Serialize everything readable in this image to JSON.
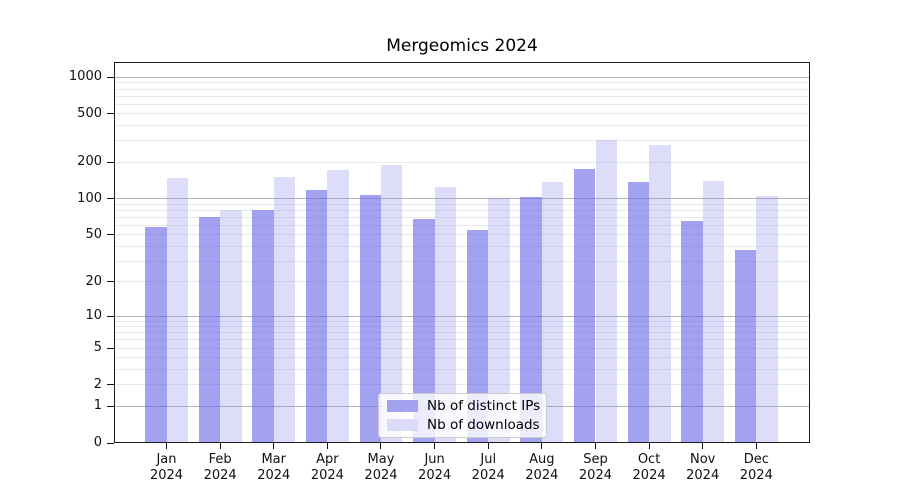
{
  "title": "Mergeomics 2024",
  "chart_data": {
    "type": "bar",
    "title": "Mergeomics 2024",
    "categories": [
      "Jan",
      "Feb",
      "Mar",
      "Apr",
      "May",
      "Jun",
      "Jul",
      "Aug",
      "Sep",
      "Oct",
      "Nov",
      "Dec"
    ],
    "year": "2024",
    "series": [
      {
        "name": "Nb of distinct IPs",
        "key": "distinct-ips",
        "color": "rgba(100,100,232,0.60)",
        "legend_color": "#a2a2f1",
        "values": [
          58,
          70,
          80,
          119,
          107,
          68,
          55,
          104,
          176,
          137,
          65,
          37
        ]
      },
      {
        "name": "Nb of downloads",
        "key": "downloads",
        "color": "rgba(130,130,235,0.27)",
        "legend_color": "#dcdcfa",
        "values": [
          148,
          81,
          150,
          174,
          191,
          125,
          102,
          137,
          305,
          280,
          141,
          106
        ]
      }
    ],
    "yscale": "log1p",
    "ylim": [
      0,
      1335
    ],
    "yticks": [
      0,
      1,
      2,
      5,
      10,
      20,
      50,
      100,
      200,
      500,
      1000
    ],
    "major_grid_values": [
      1,
      10,
      100,
      1000
    ],
    "grid": "horizontal",
    "legend_position": "lower center",
    "colors": {
      "major_grid": "#b4b4b8",
      "minor_grid": "#e9e9ee",
      "axis": "#1a1a1a",
      "background": "#ffffff"
    }
  }
}
